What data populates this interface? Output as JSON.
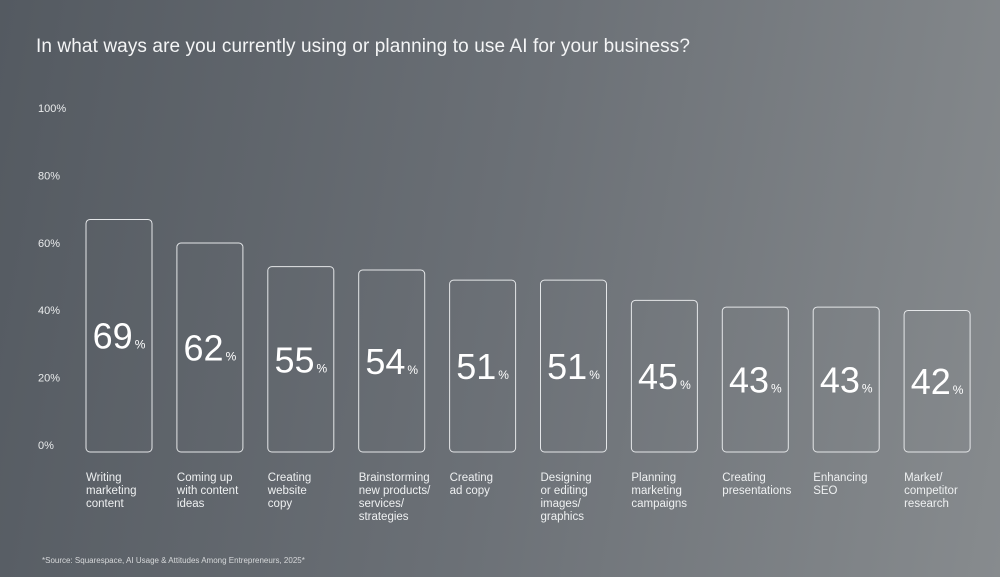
{
  "title": "In what ways are you currently using or planning to use AI for your business?",
  "source": "*Source: Squarespace, AI Usage & Attitudes Among Entrepreneurs, 2025*",
  "colors": {
    "background_start": "#545a61",
    "background_end": "#878b8e",
    "bar_outline": "#e4e6e8",
    "text": "#ffffff"
  },
  "chart_data": {
    "type": "bar",
    "title": "In what ways are you currently using or planning to use AI for your business?",
    "xlabel": "",
    "ylabel": "",
    "ylim": [
      0,
      100
    ],
    "yticks": [
      "100%",
      "80%",
      "60%",
      "40%",
      "20%",
      "0%"
    ],
    "ytick_values": [
      100,
      80,
      60,
      40,
      20,
      0
    ],
    "grid": false,
    "unit": "%",
    "categories": [
      [
        "Writing",
        "marketing",
        "content"
      ],
      [
        "Coming up",
        "with content",
        "ideas"
      ],
      [
        "Creating",
        "website",
        "copy"
      ],
      [
        "Brainstorming",
        "new products/",
        "services/",
        "strategies"
      ],
      [
        "Creating",
        "ad copy"
      ],
      [
        "Designing",
        "or editing",
        "images/",
        "graphics"
      ],
      [
        "Planning",
        "marketing",
        "campaigns"
      ],
      [
        "Creating",
        "presentations"
      ],
      [
        "Enhancing",
        "SEO"
      ],
      [
        "Market/",
        "competitor",
        "research"
      ]
    ],
    "values": [
      69,
      62,
      55,
      54,
      51,
      51,
      45,
      43,
      43,
      42
    ]
  }
}
